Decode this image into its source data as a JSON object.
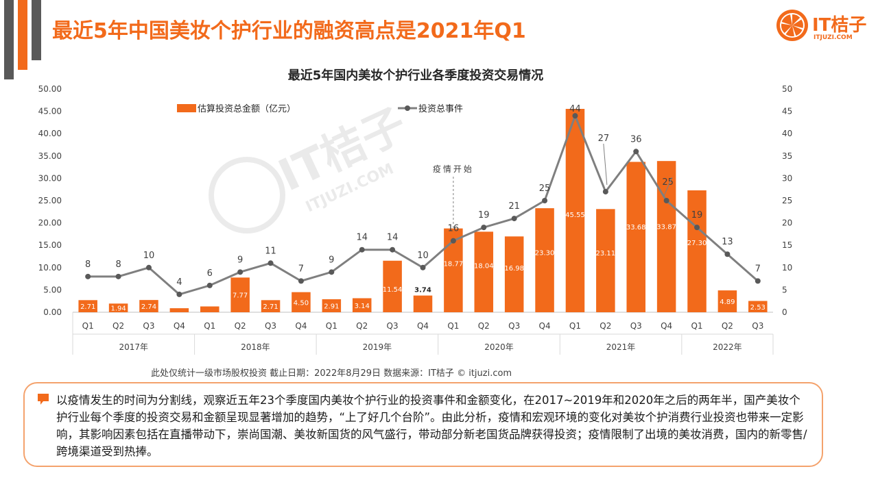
{
  "header": {
    "title": "最近5年中国美妆个护行业的融资高点是2021年Q1",
    "logo_text": "IT桔子",
    "logo_sub": "ITJUZI.COM"
  },
  "footer": {
    "source": "此处仅统计一级市场股权投资  截止日期：2022年8月29日    数据来源：IT桔子 © itjuzi.com"
  },
  "note": {
    "text": "以疫情发生的时间为分割线，观察近五年23个季度国内美妆个护行业的投资事件和金额变化，在2017~2019年和2020年之后的两年半，国产美妆个护行业每个季度的投资交易和金额呈现显著增加的趋势，“上了好几个台阶”。由此分析，疫情和宏观环境的变化对美妆个护消费行业投资也带来一定影响，其影响因素包括在直播带动下，崇尚国潮、美妆新国货的风气盛行，带动部分新老国货品牌获得投资；疫情限制了出境的美妆消费，国内的新零售/跨境渠道受到热捧。"
  },
  "colors": {
    "accent": "#f26a1b",
    "line": "#7f7f7f",
    "dark": "#595959"
  },
  "chart_data": {
    "type": "bar",
    "title": "最近5年国内美妆个护行业各季度投资交易情况",
    "categories": [
      "Q1",
      "Q2",
      "Q3",
      "Q4",
      "Q1",
      "Q2",
      "Q3",
      "Q4",
      "Q1",
      "Q2",
      "Q3",
      "Q4",
      "Q1",
      "Q2",
      "Q3",
      "Q4",
      "Q1",
      "Q2",
      "Q3",
      "Q4",
      "Q1",
      "Q2",
      "Q3"
    ],
    "year_groups": [
      {
        "label": "2017年",
        "count": 4
      },
      {
        "label": "2018年",
        "count": 4
      },
      {
        "label": "2019年",
        "count": 4
      },
      {
        "label": "2020年",
        "count": 4
      },
      {
        "label": "2021年",
        "count": 4
      },
      {
        "label": "2022年",
        "count": 3
      }
    ],
    "series": [
      {
        "name": "估算投资总金额（亿元）",
        "kind": "bar",
        "axis": "left",
        "values": [
          2.71,
          1.94,
          2.74,
          0.9,
          1.3,
          7.77,
          2.71,
          4.5,
          2.91,
          3.14,
          11.54,
          3.74,
          18.77,
          18.04,
          16.98,
          23.3,
          45.55,
          23.11,
          33.68,
          33.87,
          27.3,
          4.89,
          2.53
        ],
        "labels": [
          "2.71",
          "1.94",
          "2.74",
          "",
          "",
          "7.77",
          "2.71",
          "4.50",
          "2.91",
          "3.14",
          "11.54",
          "3.74",
          "18.77",
          "18.04",
          "16.98",
          "23.30",
          "45.55",
          "23.11",
          "33.68",
          "33.87",
          "27.30",
          "4.89",
          "2.53"
        ]
      },
      {
        "name": "投资总事件",
        "kind": "line",
        "axis": "right",
        "values": [
          8,
          8,
          10,
          4,
          6,
          9,
          11,
          7,
          9,
          14,
          14,
          10,
          16,
          19,
          21,
          25,
          44,
          27,
          36,
          25,
          19,
          13,
          7
        ]
      }
    ],
    "y_left": {
      "min": 0,
      "max": 50,
      "ticks": [
        "0.00",
        "5.00",
        "10.00",
        "15.00",
        "20.00",
        "25.00",
        "30.00",
        "35.00",
        "40.00",
        "45.00",
        "50.00"
      ]
    },
    "y_right": {
      "min": 0,
      "max": 50,
      "ticks": [
        "0",
        "5",
        "10",
        "15",
        "20",
        "25",
        "30",
        "35",
        "40",
        "45",
        "50"
      ]
    },
    "annotation": {
      "text": "疫情开始",
      "index": 12
    },
    "legend_position": "top-left",
    "watermark": {
      "text": "IT桔子",
      "sub": "ITJUZI.COM"
    }
  }
}
